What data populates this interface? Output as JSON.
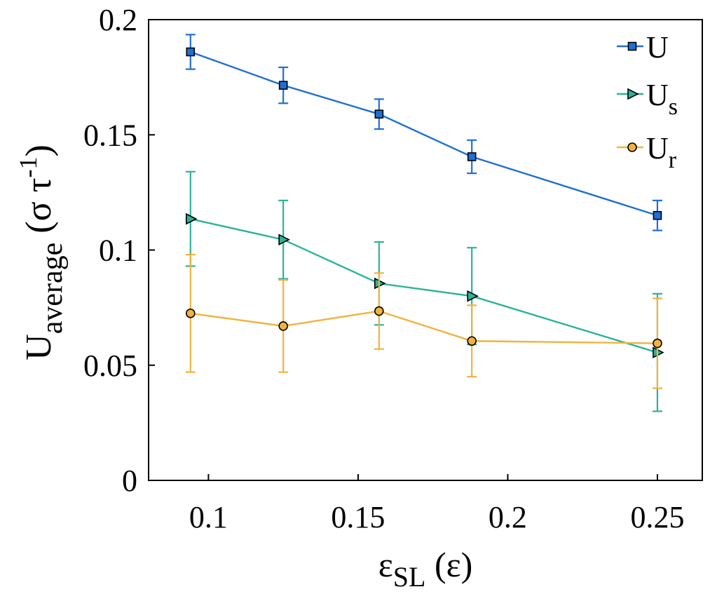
{
  "chart_data": {
    "type": "line",
    "x": [
      0.094,
      0.125,
      0.157,
      0.188,
      0.25
    ],
    "xlim": [
      0.08,
      0.265
    ],
    "ylim": [
      0,
      0.2
    ],
    "xticks": [
      0.1,
      0.15,
      0.2,
      0.25
    ],
    "xtick_labels": [
      "0.1",
      "0.15",
      "0.2",
      "0.25"
    ],
    "yticks": [
      0,
      0.05,
      0.1,
      0.15,
      0.2
    ],
    "ytick_labels": [
      "0",
      "0.05",
      "0.1",
      "0.15",
      "0.2"
    ],
    "xlabel": {
      "main": "ε",
      "sub": "SL",
      "suffix": " (ε)"
    },
    "ylabel": {
      "main": "U",
      "sub": "average",
      "suffix_pre": " (σ τ",
      "sup": "-1",
      "suffix_post": ")"
    },
    "series": [
      {
        "name": "U",
        "sub": "",
        "color": "#1f6fd6",
        "marker": "square",
        "values": [
          0.186,
          0.1715,
          0.159,
          0.1405,
          0.115
        ],
        "err": [
          0.0075,
          0.0078,
          0.0065,
          0.0072,
          0.0065
        ]
      },
      {
        "name": "U",
        "sub": "s",
        "color": "#2bb39a",
        "marker": "triangle-right",
        "values": [
          0.1135,
          0.1045,
          0.0855,
          0.08,
          0.0555
        ],
        "err": [
          0.0205,
          0.017,
          0.018,
          0.021,
          0.0255
        ]
      },
      {
        "name": "U",
        "sub": "r",
        "color": "#f2b33d",
        "marker": "circle",
        "values": [
          0.0725,
          0.067,
          0.0735,
          0.0605,
          0.0595
        ],
        "err": [
          0.0255,
          0.02,
          0.0165,
          0.0155,
          0.0195
        ]
      }
    ],
    "legend": "top-right",
    "grid": false
  }
}
